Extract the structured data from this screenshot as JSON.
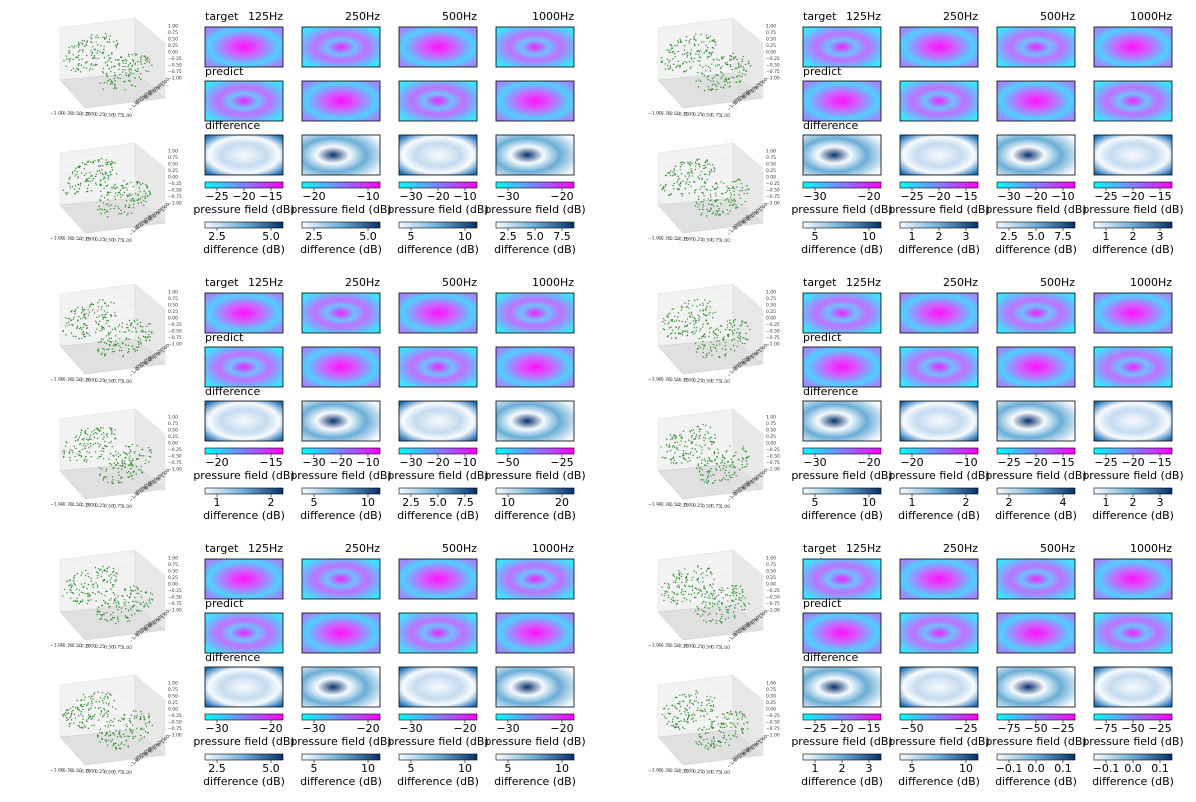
{
  "panels": [
    {
      "column_titles": [
        "125Hz",
        "250Hz",
        "500Hz",
        "1000Hz"
      ],
      "row_labels": [
        "target",
        "predict",
        "difference"
      ],
      "pressure_colorbars": [
        {
          "label": "pressure field (dB)",
          "ticks": [
            "−25",
            "−20",
            "−15"
          ]
        },
        {
          "label": "pressure field (dB)",
          "ticks": [
            "−20",
            "−10"
          ]
        },
        {
          "label": "pressure field (dB)",
          "ticks": [
            "−30",
            "−20",
            "−10"
          ]
        },
        {
          "label": "pressure field (dB)",
          "ticks": [
            "−30",
            "−20"
          ]
        }
      ],
      "difference_colorbars": [
        {
          "label": "difference (dB)",
          "ticks": [
            "2.5",
            "5.0"
          ]
        },
        {
          "label": "difference (dB)",
          "ticks": [
            "2.5",
            "5.0"
          ]
        },
        {
          "label": "difference (dB)",
          "ticks": [
            "5",
            "10"
          ]
        },
        {
          "label": "difference (dB)",
          "ticks": [
            "2.5",
            "5.0",
            "7.5"
          ]
        }
      ]
    },
    {
      "column_titles": [
        "125Hz",
        "250Hz",
        "500Hz",
        "1000Hz"
      ],
      "row_labels": [
        "target",
        "predict",
        "difference"
      ],
      "pressure_colorbars": [
        {
          "label": "pressure field (dB)",
          "ticks": [
            "−30",
            "−20"
          ]
        },
        {
          "label": "pressure field (dB)",
          "ticks": [
            "−25",
            "−20",
            "−15"
          ]
        },
        {
          "label": "pressure field (dB)",
          "ticks": [
            "−30",
            "−20",
            "−10"
          ]
        },
        {
          "label": "pressure field (dB)",
          "ticks": [
            "−25",
            "−20",
            "−15"
          ]
        }
      ],
      "difference_colorbars": [
        {
          "label": "difference (dB)",
          "ticks": [
            "5",
            "10"
          ]
        },
        {
          "label": "difference (dB)",
          "ticks": [
            "1",
            "2",
            "3"
          ]
        },
        {
          "label": "difference (dB)",
          "ticks": [
            "2.5",
            "5.0",
            "7.5"
          ]
        },
        {
          "label": "difference (dB)",
          "ticks": [
            "1",
            "2",
            "3"
          ]
        }
      ]
    },
    {
      "column_titles": [
        "125Hz",
        "250Hz",
        "500Hz",
        "1000Hz"
      ],
      "row_labels": [
        "target",
        "predict",
        "difference"
      ],
      "pressure_colorbars": [
        {
          "label": "pressure field (dB)",
          "ticks": [
            "−20",
            "−15"
          ]
        },
        {
          "label": "pressure field (dB)",
          "ticks": [
            "−30",
            "−20",
            "−10"
          ]
        },
        {
          "label": "pressure field (dB)",
          "ticks": [
            "−30",
            "−20",
            "−10"
          ]
        },
        {
          "label": "pressure field (dB)",
          "ticks": [
            "−50",
            "−25"
          ]
        }
      ],
      "difference_colorbars": [
        {
          "label": "difference (dB)",
          "ticks": [
            "1",
            "2"
          ]
        },
        {
          "label": "difference (dB)",
          "ticks": [
            "5",
            "10"
          ]
        },
        {
          "label": "difference (dB)",
          "ticks": [
            "2.5",
            "5.0",
            "7.5"
          ]
        },
        {
          "label": "difference (dB)",
          "ticks": [
            "10",
            "20"
          ]
        }
      ]
    },
    {
      "column_titles": [
        "125Hz",
        "250Hz",
        "500Hz",
        "1000Hz"
      ],
      "row_labels": [
        "target",
        "predict",
        "difference"
      ],
      "pressure_colorbars": [
        {
          "label": "pressure field (dB)",
          "ticks": [
            "−30",
            "−20"
          ]
        },
        {
          "label": "pressure field (dB)",
          "ticks": [
            "−20",
            "−10"
          ]
        },
        {
          "label": "pressure field (dB)",
          "ticks": [
            "−25",
            "−20",
            "−15"
          ]
        },
        {
          "label": "pressure field (dB)",
          "ticks": [
            "−25",
            "−20",
            "−15"
          ]
        }
      ],
      "difference_colorbars": [
        {
          "label": "difference (dB)",
          "ticks": [
            "5",
            "10"
          ]
        },
        {
          "label": "difference (dB)",
          "ticks": [
            "1",
            "2"
          ]
        },
        {
          "label": "difference (dB)",
          "ticks": [
            "2",
            "4"
          ]
        },
        {
          "label": "difference (dB)",
          "ticks": [
            "1",
            "2",
            "3"
          ]
        }
      ]
    },
    {
      "column_titles": [
        "125Hz",
        "250Hz",
        "500Hz",
        "1000Hz"
      ],
      "row_labels": [
        "target",
        "predict",
        "difference"
      ],
      "pressure_colorbars": [
        {
          "label": "pressure field (dB)",
          "ticks": [
            "−30",
            "−20"
          ]
        },
        {
          "label": "pressure field (dB)",
          "ticks": [
            "−30",
            "−20"
          ]
        },
        {
          "label": "pressure field (dB)",
          "ticks": [
            "−30",
            "−20"
          ]
        },
        {
          "label": "pressure field (dB)",
          "ticks": [
            "−30",
            "−20"
          ]
        }
      ],
      "difference_colorbars": [
        {
          "label": "difference (dB)",
          "ticks": [
            "2.5",
            "5.0"
          ]
        },
        {
          "label": "difference (dB)",
          "ticks": [
            "5",
            "10"
          ]
        },
        {
          "label": "difference (dB)",
          "ticks": [
            "5",
            "10"
          ]
        },
        {
          "label": "difference (dB)",
          "ticks": [
            "5",
            "10"
          ]
        }
      ]
    },
    {
      "column_titles": [
        "125Hz",
        "250Hz",
        "500Hz",
        "1000Hz"
      ],
      "row_labels": [
        "target",
        "predict",
        "difference"
      ],
      "pressure_colorbars": [
        {
          "label": "pressure field (dB)",
          "ticks": [
            "−25",
            "−20",
            "−15"
          ]
        },
        {
          "label": "pressure field (dB)",
          "ticks": [
            "−50",
            "−25"
          ]
        },
        {
          "label": "pressure field (dB)",
          "ticks": [
            "−75",
            "−50",
            "−25"
          ]
        },
        {
          "label": "pressure field (dB)",
          "ticks": [
            "−75",
            "−50",
            "−25"
          ]
        }
      ],
      "difference_colorbars": [
        {
          "label": "difference (dB)",
          "ticks": [
            "1",
            "2",
            "3"
          ]
        },
        {
          "label": "difference (dB)",
          "ticks": [
            "5",
            "10"
          ]
        },
        {
          "label": "difference (dB)",
          "ticks": [
            "−0.1",
            "0.0",
            "0.1"
          ]
        },
        {
          "label": "difference (dB)",
          "ticks": [
            "−0.1",
            "0.0",
            "0.1"
          ]
        }
      ]
    }
  ],
  "axis3d": {
    "ticks": [
      "−1.00",
      "−0.75",
      "−0.50",
      "−0.25",
      "0.00",
      "0.25",
      "0.50",
      "0.75",
      "1.00"
    ]
  }
}
